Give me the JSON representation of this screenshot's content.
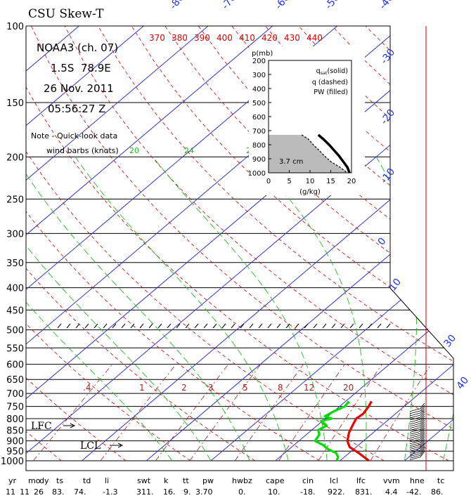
{
  "title": "CSU Skew-T",
  "satellite": "NOAA3 (ch. 07)",
  "location": "1.5S  78.9E",
  "date": "26 Nov. 2011",
  "time": "05:56:27 Z",
  "note_line1": "Note - Quick-look data",
  "note_line2": "wind barbs (knots)",
  "lfc_label": "LFC",
  "lcl_label": "LCL",
  "colors": {
    "isotherm": "#3333cc",
    "isobar": "#000000",
    "dry_adiabat": "#cc0000",
    "mixing_ratio": "#aa2222",
    "moist_adiabat": "#22bb22",
    "temperature": "#ee0000",
    "dewpoint": "#00dd00",
    "pw_fill": "#bbbbbb"
  },
  "chart_data": [
    {
      "type": "line",
      "pressure_levels": [
        100,
        150,
        200,
        250,
        300,
        350,
        400,
        450,
        500,
        550,
        600,
        650,
        700,
        750,
        800,
        850,
        900,
        950,
        1000
      ],
      "isotherm_labels": [
        -80,
        -70,
        -60,
        -50,
        -40,
        -30,
        -20,
        -10,
        0,
        10,
        30,
        40
      ],
      "theta_labels": [
        370,
        380,
        390,
        400,
        410,
        420,
        430,
        440
      ],
      "mixing_ratio_labels": [
        ".4",
        "1",
        "2",
        "3",
        "5",
        "8",
        "12",
        "20"
      ],
      "wind_barb_scale_labels": [
        "20",
        "24",
        "2"
      ],
      "temperature_profile": {
        "pressure": [
          730,
          750,
          780,
          800,
          830,
          860,
          900,
          930,
          960,
          1000
        ],
        "temperature_c": [
          14.0,
          14.5,
          15.0,
          14.8,
          15.5,
          16.2,
          17.5,
          19.0,
          21.5,
          24.5
        ]
      },
      "dewpoint_profile": {
        "pressure": [
          730,
          750,
          770,
          790,
          800,
          810,
          830,
          850,
          870,
          900,
          920,
          940,
          960,
          980,
          1000
        ],
        "dewpoint_c": [
          10.5,
          10.8,
          10.0,
          9.5,
          11.0,
          9.8,
          11.5,
          11.0,
          12.0,
          12.5,
          14.5,
          16.0,
          18.0,
          19.0,
          19.5
        ]
      },
      "stats": {
        "headers": [
          "yr",
          "mo",
          "dy",
          "ts",
          "td",
          "li",
          "swt",
          "k",
          "tt",
          "pw",
          "hwbz",
          "cape",
          "cin",
          "lcl",
          "lfc",
          "vvm",
          "hne",
          "tc"
        ],
        "values": [
          "11",
          "11",
          "26",
          "83.",
          "74.",
          "-1.3",
          "311.",
          "16.",
          "9.",
          "3.70",
          "0.",
          "10.",
          "-18.",
          "922.",
          "831.",
          "4.4",
          "-42.",
          "86."
        ]
      }
    },
    {
      "type": "line",
      "ylabel": "p(mb)",
      "xlabel": "(g/kg)",
      "xlim": [
        0,
        20
      ],
      "ylim": [
        1000,
        200
      ],
      "yticks": [
        200,
        300,
        400,
        500,
        600,
        700,
        800,
        900,
        1000
      ],
      "xticks": [
        0,
        5,
        10,
        15,
        20
      ],
      "legend": [
        "qsat(solid)",
        "q (dashed)",
        "PW (filled)"
      ],
      "legend_lines": [
        {
          "base": "q",
          "sub": "sat",
          "rest": "(solid)"
        },
        {
          "base": "q (dashed)",
          "sub": "",
          "rest": ""
        },
        {
          "base": "PW (filled)",
          "sub": "",
          "rest": ""
        }
      ],
      "pw_label": "3.7 cm",
      "qsat": {
        "pressure": [
          730,
          760,
          800,
          840,
          880,
          920,
          960,
          1000
        ],
        "q_gkg": [
          12.0,
          13.2,
          14.6,
          15.8,
          17.0,
          18.0,
          19.0,
          19.5
        ]
      },
      "q": {
        "pressure": [
          730,
          760,
          800,
          840,
          880,
          920,
          960,
          1000
        ],
        "q_gkg": [
          8.0,
          9.6,
          10.8,
          12.2,
          13.5,
          15.0,
          17.2,
          19.0
        ]
      }
    }
  ]
}
